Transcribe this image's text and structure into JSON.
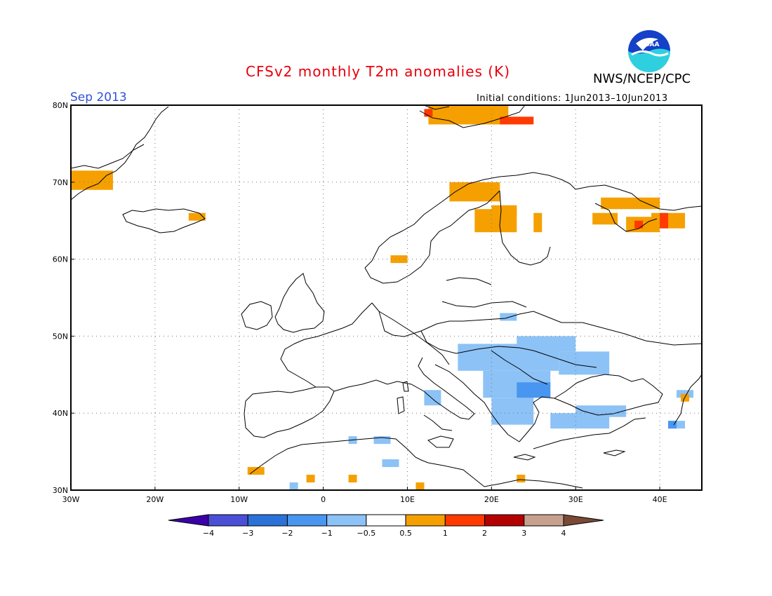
{
  "header": {
    "title": "CFSv2 monthly T2m anomalies (K)",
    "agency": "NWS/NCEP/CPC",
    "month": "Sep 2013",
    "initial_conditions": "Initial conditions: 1Jun2013–10Jun2013",
    "logo_text": "NOAA"
  },
  "map": {
    "lon_range": [
      -30,
      45
    ],
    "lat_range": [
      30,
      80
    ],
    "lon_ticks": [
      {
        "value": -30,
        "label": "30W"
      },
      {
        "value": -20,
        "label": "20W"
      },
      {
        "value": -10,
        "label": "10W"
      },
      {
        "value": 0,
        "label": "0"
      },
      {
        "value": 10,
        "label": "10E"
      },
      {
        "value": 20,
        "label": "20E"
      },
      {
        "value": 30,
        "label": "30E"
      },
      {
        "value": 40,
        "label": "40E"
      }
    ],
    "lat_ticks": [
      {
        "value": 30,
        "label": "30N"
      },
      {
        "value": 40,
        "label": "40N"
      },
      {
        "value": 50,
        "label": "50N"
      },
      {
        "value": 60,
        "label": "60N"
      },
      {
        "value": 70,
        "label": "70N"
      },
      {
        "value": 80,
        "label": "80N"
      }
    ],
    "grid": "dotted"
  },
  "colorbar": {
    "colors": [
      "#3b00a8",
      "#4b4fd6",
      "#2a72d8",
      "#4896f0",
      "#8cc2f6",
      "#ffffff",
      "#f5a000",
      "#ff3a00",
      "#b30000",
      "#c8a08e",
      "#7a4a37"
    ],
    "labels": [
      "−4",
      "−3",
      "−2",
      "−1",
      "−0.5",
      "0.5",
      "1",
      "2",
      "3",
      "4"
    ]
  },
  "anomaly_colors": {
    "orange": "#f5a000",
    "red": "#ff3a00",
    "light_blue": "#8cc2f6",
    "blue": "#4896f0"
  },
  "anomaly_patches": [
    {
      "color": "orange",
      "lon": [
        -30,
        -25
      ],
      "lat": [
        69,
        71.5
      ]
    },
    {
      "color": "orange",
      "lon": [
        -16,
        -14
      ],
      "lat": [
        65,
        66
      ]
    },
    {
      "color": "orange",
      "lon": [
        12.5,
        22
      ],
      "lat": [
        77.5,
        80
      ]
    },
    {
      "color": "red",
      "lon": [
        21,
        25
      ],
      "lat": [
        77.5,
        78.5
      ]
    },
    {
      "color": "red",
      "lon": [
        12,
        13
      ],
      "lat": [
        78.5,
        79.5
      ]
    },
    {
      "color": "orange",
      "lon": [
        15,
        21
      ],
      "lat": [
        67.5,
        70
      ]
    },
    {
      "color": "orange",
      "lon": [
        18,
        23
      ],
      "lat": [
        63.5,
        66.5
      ]
    },
    {
      "color": "orange",
      "lon": [
        20,
        23
      ],
      "lat": [
        65.5,
        67
      ]
    },
    {
      "color": "orange",
      "lon": [
        25,
        26
      ],
      "lat": [
        63.5,
        66
      ]
    },
    {
      "color": "orange",
      "lon": [
        8,
        10
      ],
      "lat": [
        59.5,
        60.5
      ]
    },
    {
      "color": "orange",
      "lon": [
        33,
        40
      ],
      "lat": [
        66.5,
        68
      ]
    },
    {
      "color": "orange",
      "lon": [
        32,
        35
      ],
      "lat": [
        64.5,
        66
      ]
    },
    {
      "color": "orange",
      "lon": [
        36,
        40
      ],
      "lat": [
        63.5,
        65.5
      ]
    },
    {
      "color": "orange",
      "lon": [
        39,
        43
      ],
      "lat": [
        64,
        66
      ]
    },
    {
      "color": "red",
      "lon": [
        37,
        38
      ],
      "lat": [
        64,
        65
      ]
    },
    {
      "color": "red",
      "lon": [
        40,
        41
      ],
      "lat": [
        64,
        66
      ]
    },
    {
      "color": "light_blue",
      "lon": [
        21,
        23
      ],
      "lat": [
        52,
        53
      ]
    },
    {
      "color": "light_blue",
      "lon": [
        16,
        28
      ],
      "lat": [
        45.5,
        49
      ]
    },
    {
      "color": "light_blue",
      "lon": [
        23,
        30
      ],
      "lat": [
        48,
        50
      ]
    },
    {
      "color": "light_blue",
      "lon": [
        28,
        34
      ],
      "lat": [
        45,
        48
      ]
    },
    {
      "color": "light_blue",
      "lon": [
        19,
        27
      ],
      "lat": [
        42,
        45.5
      ]
    },
    {
      "color": "light_blue",
      "lon": [
        20,
        25
      ],
      "lat": [
        38.5,
        42
      ]
    },
    {
      "color": "light_blue",
      "lon": [
        27,
        34
      ],
      "lat": [
        38,
        40
      ]
    },
    {
      "color": "light_blue",
      "lon": [
        30,
        36
      ],
      "lat": [
        39.5,
        41
      ]
    },
    {
      "color": "light_blue",
      "lon": [
        12,
        14
      ],
      "lat": [
        41,
        43
      ]
    },
    {
      "color": "light_blue",
      "lon": [
        42,
        44
      ],
      "lat": [
        42,
        43
      ]
    },
    {
      "color": "light_blue",
      "lon": [
        41,
        43
      ],
      "lat": [
        38,
        39
      ]
    },
    {
      "color": "light_blue",
      "lon": [
        3,
        4
      ],
      "lat": [
        36,
        37
      ]
    },
    {
      "color": "light_blue",
      "lon": [
        6,
        8
      ],
      "lat": [
        36,
        37
      ]
    },
    {
      "color": "light_blue",
      "lon": [
        7,
        9
      ],
      "lat": [
        33,
        34
      ]
    },
    {
      "color": "light_blue",
      "lon": [
        -4,
        -3
      ],
      "lat": [
        30,
        31
      ]
    },
    {
      "color": "blue",
      "lon": [
        23,
        27
      ],
      "lat": [
        42,
        44
      ]
    },
    {
      "color": "blue",
      "lon": [
        41,
        42
      ],
      "lat": [
        38,
        39
      ]
    },
    {
      "color": "orange",
      "lon": [
        -9,
        -7
      ],
      "lat": [
        32,
        33
      ]
    },
    {
      "color": "orange",
      "lon": [
        -2,
        -1
      ],
      "lat": [
        31,
        32
      ]
    },
    {
      "color": "orange",
      "lon": [
        3,
        4
      ],
      "lat": [
        31,
        32
      ]
    },
    {
      "color": "orange",
      "lon": [
        11,
        12
      ],
      "lat": [
        30,
        31
      ]
    },
    {
      "color": "orange",
      "lon": [
        23,
        24
      ],
      "lat": [
        31,
        32
      ]
    },
    {
      "color": "orange",
      "lon": [
        42.5,
        43.5
      ],
      "lat": [
        41.5,
        42.5
      ]
    }
  ]
}
